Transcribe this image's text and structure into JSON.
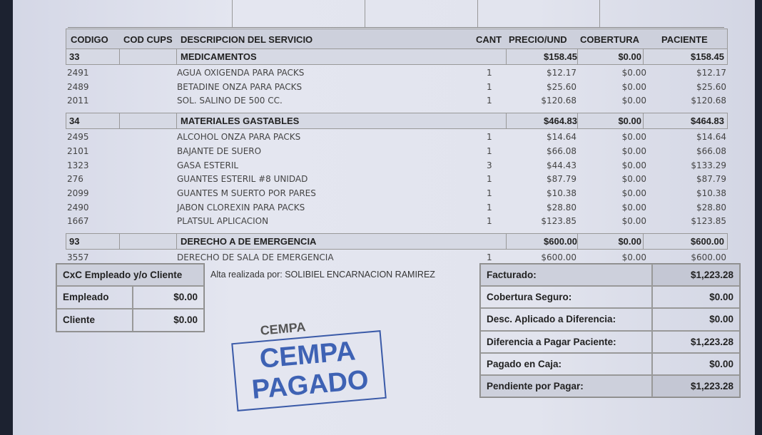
{
  "table": {
    "headers": [
      "CODIGO",
      "COD CUPS",
      "DESCRIPCION DEL SERVICIO",
      "CANT",
      "PRECIO/UND",
      "COBERTURA",
      "PACIENTE"
    ],
    "groups": [
      {
        "code": "33",
        "name": "MEDICAMENTOS",
        "precio": "$158.45",
        "cobertura": "$0.00",
        "paciente": "$158.45",
        "items": [
          {
            "code": "2491",
            "desc": "AGUA OXIGENDA PARA PACKS",
            "cant": "1",
            "precio": "$12.17",
            "cobertura": "$0.00",
            "paciente": "$12.17"
          },
          {
            "code": "2489",
            "desc": "BETADINE ONZA PARA PACKS",
            "cant": "1",
            "precio": "$25.60",
            "cobertura": "$0.00",
            "paciente": "$25.60"
          },
          {
            "code": "2011",
            "desc": "SOL. SALINO DE 500 CC.",
            "cant": "1",
            "precio": "$120.68",
            "cobertura": "$0.00",
            "paciente": "$120.68"
          }
        ]
      },
      {
        "code": "34",
        "name": "MATERIALES GASTABLES",
        "precio": "$464.83",
        "cobertura": "$0.00",
        "paciente": "$464.83",
        "items": [
          {
            "code": "2495",
            "desc": "ALCOHOL ONZA PARA PACKS",
            "cant": "1",
            "precio": "$14.64",
            "cobertura": "$0.00",
            "paciente": "$14.64"
          },
          {
            "code": "2101",
            "desc": "BAJANTE DE SUERO",
            "cant": "1",
            "precio": "$66.08",
            "cobertura": "$0.00",
            "paciente": "$66.08"
          },
          {
            "code": "1323",
            "desc": "GASA ESTERIL",
            "cant": "3",
            "precio": "$44.43",
            "cobertura": "$0.00",
            "paciente": "$133.29"
          },
          {
            "code": "276",
            "desc": "GUANTES ESTERIL #8  UNIDAD",
            "cant": "1",
            "precio": "$87.79",
            "cobertura": "$0.00",
            "paciente": "$87.79"
          },
          {
            "code": "2099",
            "desc": "GUANTES M  SUERTO POR PARES",
            "cant": "1",
            "precio": "$10.38",
            "cobertura": "$0.00",
            "paciente": "$10.38"
          },
          {
            "code": "2490",
            "desc": "JABON CLOREXIN  PARA PACKS",
            "cant": "1",
            "precio": "$28.80",
            "cobertura": "$0.00",
            "paciente": "$28.80"
          },
          {
            "code": "1667",
            "desc": "PLATSUL APLICACION",
            "cant": "1",
            "precio": "$123.85",
            "cobertura": "$0.00",
            "paciente": "$123.85"
          }
        ]
      },
      {
        "code": "93",
        "name": "DERECHO A DE EMERGENCIA",
        "precio": "$600.00",
        "cobertura": "$0.00",
        "paciente": "$600.00",
        "items": [
          {
            "code": "3557",
            "desc": "DERECHO DE SALA DE EMERGENCIA",
            "cant": "1",
            "precio": "$600.00",
            "cobertura": "$0.00",
            "paciente": "$600.00"
          }
        ]
      }
    ]
  },
  "cxc": {
    "title": "CxC Empleado y/o Cliente",
    "rows": [
      {
        "label": "Empleado",
        "value": "$0.00"
      },
      {
        "label": "Cliente",
        "value": "$0.00"
      }
    ]
  },
  "alta": "Alta realizada por: SOLIBIEL ENCARNACION RAMIREZ",
  "summary": [
    {
      "label": "Facturado:",
      "value": "$1,223.28"
    },
    {
      "label": "Cobertura Seguro:",
      "value": "$0.00"
    },
    {
      "label": "Desc. Aplicado a Diferencia:",
      "value": "$0.00"
    },
    {
      "label": "Diferencia a Pagar Paciente:",
      "value": "$1,223.28"
    },
    {
      "label": "Pagado en Caja:",
      "value": "$0.00"
    },
    {
      "label": "Pendiente por Pagar:",
      "value": "$1,223.28"
    }
  ],
  "stamp": {
    "line1": "CEMPA",
    "line2": "PAGADO",
    "overprint": "CEMPA",
    "color": "#3e62b4"
  }
}
